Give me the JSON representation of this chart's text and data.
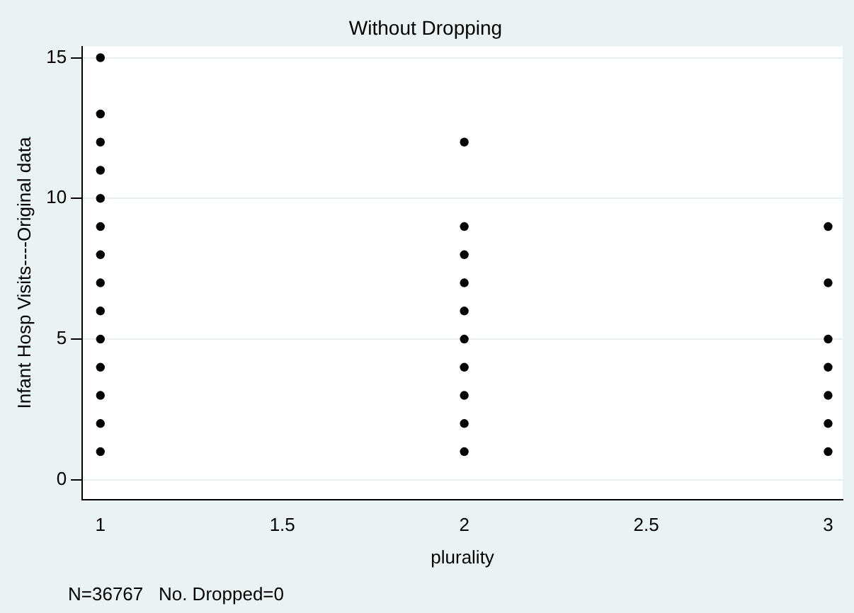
{
  "chart_data": {
    "type": "scatter",
    "title": "Without Dropping",
    "xlabel": "plurality",
    "ylabel": "Infant Hosp Visits----Original data",
    "x": [
      1,
      1,
      1,
      1,
      1,
      1,
      1,
      1,
      1,
      1,
      1,
      1,
      1,
      1,
      2,
      2,
      2,
      2,
      2,
      2,
      2,
      2,
      2,
      2,
      3,
      3,
      3,
      3,
      3,
      3,
      3
    ],
    "series": [
      {
        "color": "#000000",
        "values": [
          1,
          2,
          3,
          4,
          5,
          6,
          7,
          8,
          9,
          10,
          11,
          12,
          13,
          15,
          1,
          2,
          3,
          4,
          5,
          6,
          7,
          8,
          9,
          12,
          1,
          2,
          3,
          4,
          5,
          7,
          9
        ]
      }
    ],
    "xlim": [
      0.95,
      3.04
    ],
    "xticks": [
      1,
      1.5,
      2,
      2.5,
      3
    ],
    "ylim": [
      -0.7,
      15.4
    ],
    "yticks": [
      0,
      5,
      10,
      15
    ],
    "grid": "y",
    "marker": "circle",
    "legend": false,
    "annotations": [
      "N=36767   No. Dropped=0"
    ]
  }
}
